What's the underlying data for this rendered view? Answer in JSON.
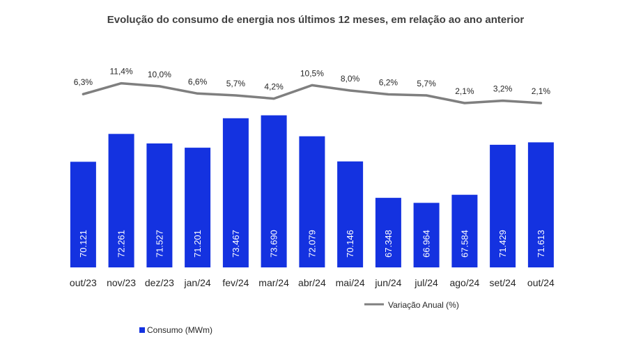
{
  "chart_data": {
    "type": "bar",
    "title": "Evolução do consumo de energia nos últimos 12 meses, em relação ao ano anterior",
    "categories": [
      "out/23",
      "nov/23",
      "dez/23",
      "jan/24",
      "fev/24",
      "mar/24",
      "abr/24",
      "mai/24",
      "jun/24",
      "jul/24",
      "ago/24",
      "set/24",
      "out/24"
    ],
    "series": [
      {
        "name": "Consumo (MWm)",
        "type": "bar",
        "color": "#1432E0",
        "values": [
          70121,
          72261,
          71527,
          71201,
          73467,
          73690,
          72079,
          70146,
          67348,
          66964,
          67584,
          71429,
          71613
        ],
        "labels": [
          "70.121",
          "72.261",
          "71.527",
          "71.201",
          "73.467",
          "73.690",
          "72.079",
          "70.146",
          "67.348",
          "66.964",
          "67.584",
          "71.429",
          "71.613"
        ]
      },
      {
        "name": "Variação Anual (%)",
        "type": "line",
        "color": "#7F7F7F",
        "values": [
          6.3,
          11.4,
          10.0,
          6.6,
          5.7,
          4.2,
          10.5,
          8.0,
          6.2,
          5.7,
          2.1,
          3.2,
          2.1
        ],
        "labels": [
          "6,3%",
          "11,4%",
          "10,0%",
          "6,6%",
          "5,7%",
          "4,2%",
          "10,5%",
          "8,0%",
          "6,2%",
          "5,7%",
          "2,1%",
          "3,2%",
          "2,1%"
        ]
      }
    ],
    "bar_axis_min": 62000,
    "legend": {
      "line": "Variação Anual (%)",
      "bar": "Consumo (MWm)"
    }
  }
}
